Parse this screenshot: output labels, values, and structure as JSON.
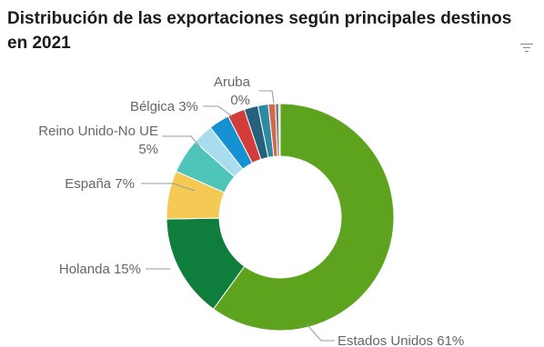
{
  "title": "Distribución de las exportaciones según principales destinos en 2021",
  "menu_icon": "filter-lines-icon",
  "chart_data": {
    "type": "pie",
    "donut": true,
    "title": "Distribución de las exportaciones según principales destinos en 2021",
    "slices": [
      {
        "name": "Estados Unidos",
        "value": 61,
        "label": "Estados Unidos 61%",
        "color": "#5ea31d"
      },
      {
        "name": "Holanda",
        "value": 15,
        "label": "Holanda 15%",
        "color": "#0f7d3b"
      },
      {
        "name": "España",
        "value": 7,
        "label": "España 7%",
        "color": "#f4ca55"
      },
      {
        "name": "Reino Unido-No UE",
        "value": 5,
        "label": "Reino Unido-No UE 5%",
        "color": "#4fc4b8"
      },
      {
        "name": "",
        "value": 3,
        "label": "",
        "color": "#a9dcec"
      },
      {
        "name": "Bélgica",
        "value": 3,
        "label": "Bélgica 3%",
        "color": "#1590d0"
      },
      {
        "name": "",
        "value": 2.5,
        "label": "",
        "color": "#d43c3c"
      },
      {
        "name": "",
        "value": 2,
        "label": "",
        "color": "#25607d"
      },
      {
        "name": "",
        "value": 1.5,
        "label": "",
        "color": "#2e8aa0"
      },
      {
        "name": "",
        "value": 1.0,
        "label": "",
        "color": "#cf6a4d"
      },
      {
        "name": "",
        "value": 0.5,
        "label": "",
        "color": "#7d7d7d"
      },
      {
        "name": "Aruba",
        "value": 0.2,
        "label": "Aruba 0%",
        "color": "#b0b0b0"
      }
    ],
    "label_texts": {
      "estados_unidos": "Estados Unidos 61%",
      "holanda": "Holanda 15%",
      "espana": "España 7%",
      "reino_line1": "Reino Unido-No UE",
      "reino_line2": "5%",
      "belgica": "Bélgica 3%",
      "aruba_line1": "Aruba",
      "aruba_line2": "0%"
    }
  }
}
